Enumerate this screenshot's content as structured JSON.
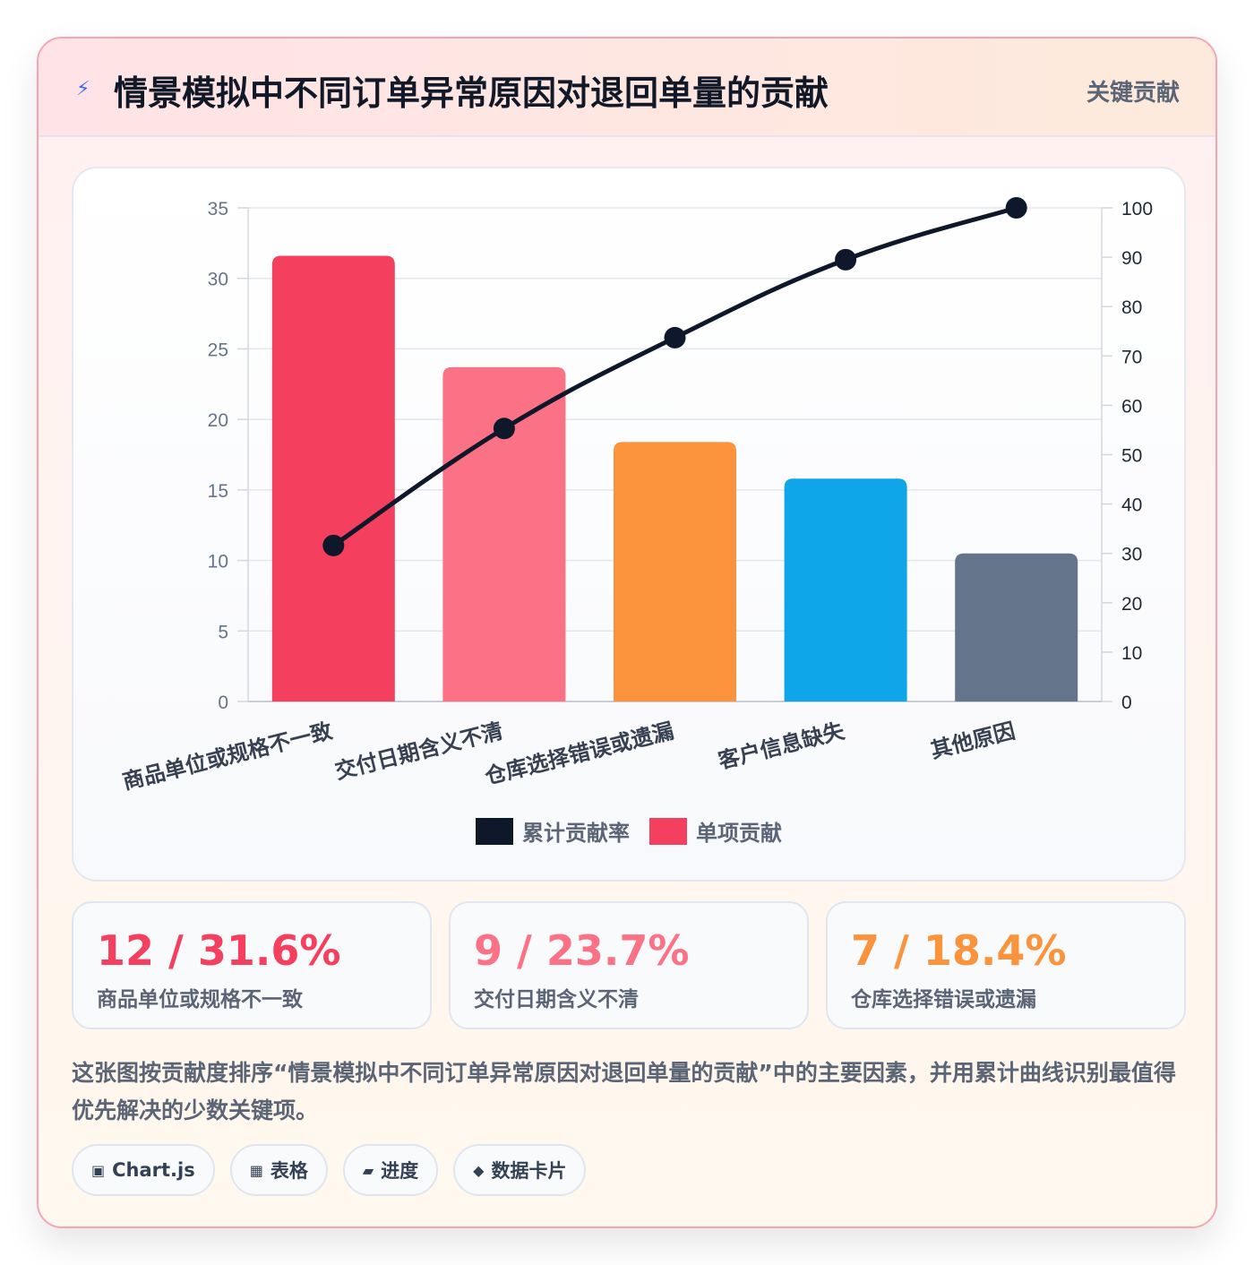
{
  "header": {
    "icon": "lightning-icon",
    "title": "情景模拟中不同订单异常原因对退回单量的贡献",
    "badge": "关键贡献"
  },
  "chart_data": {
    "type": "bar",
    "categories": [
      "商品单位或规格不一致",
      "交付日期含义不清",
      "仓库选择错误或遗漏",
      "客户信息缺失",
      "其他原因"
    ],
    "series": [
      {
        "name": "单项贡献",
        "type": "bar",
        "axis": "left",
        "values": [
          31.6,
          23.7,
          18.4,
          15.8,
          10.5
        ]
      },
      {
        "name": "累计贡献率",
        "type": "line",
        "axis": "right",
        "values": [
          31.6,
          55.3,
          73.7,
          89.5,
          100
        ]
      }
    ],
    "bar_colors": [
      "#f43f5e",
      "#fb7185",
      "#fb923c",
      "#0ea5e9",
      "#64748b"
    ],
    "line_color": "#0f172a",
    "y_left": {
      "min": 0,
      "max": 35,
      "ticks": [
        "0",
        "5",
        "10",
        "15",
        "20",
        "25",
        "30",
        "35"
      ]
    },
    "y_right": {
      "min": 0,
      "max": 100,
      "ticks": [
        "0",
        "10",
        "20",
        "30",
        "40",
        "50",
        "60",
        "70",
        "80",
        "90",
        "100"
      ]
    },
    "grid": true,
    "legend": {
      "position": "bottom",
      "items": [
        {
          "label": "累计贡献率",
          "color": "#0f172a"
        },
        {
          "label": "单项贡献",
          "color": "#f43f5e"
        }
      ]
    }
  },
  "stats": [
    {
      "value": "12 / 31.6%",
      "label": "商品单位或规格不一致",
      "color": "#f43f5e"
    },
    {
      "value": "9 / 23.7%",
      "label": "交付日期含义不清",
      "color": "#fb7185"
    },
    {
      "value": "7 / 18.4%",
      "label": "仓库选择错误或遗漏",
      "color": "#fb923c"
    }
  ],
  "description": "这张图按贡献度排序“情景模拟中不同订单异常原因对退回单量的贡献”中的主要因素，并用累计曲线识别最值得优先解决的少数关键项。",
  "tags": [
    {
      "icon": "▣",
      "label": "Chart.js"
    },
    {
      "icon": "▦",
      "label": "表格"
    },
    {
      "icon": "▰",
      "label": "进度"
    },
    {
      "icon": "◆",
      "label": "数据卡片"
    }
  ]
}
